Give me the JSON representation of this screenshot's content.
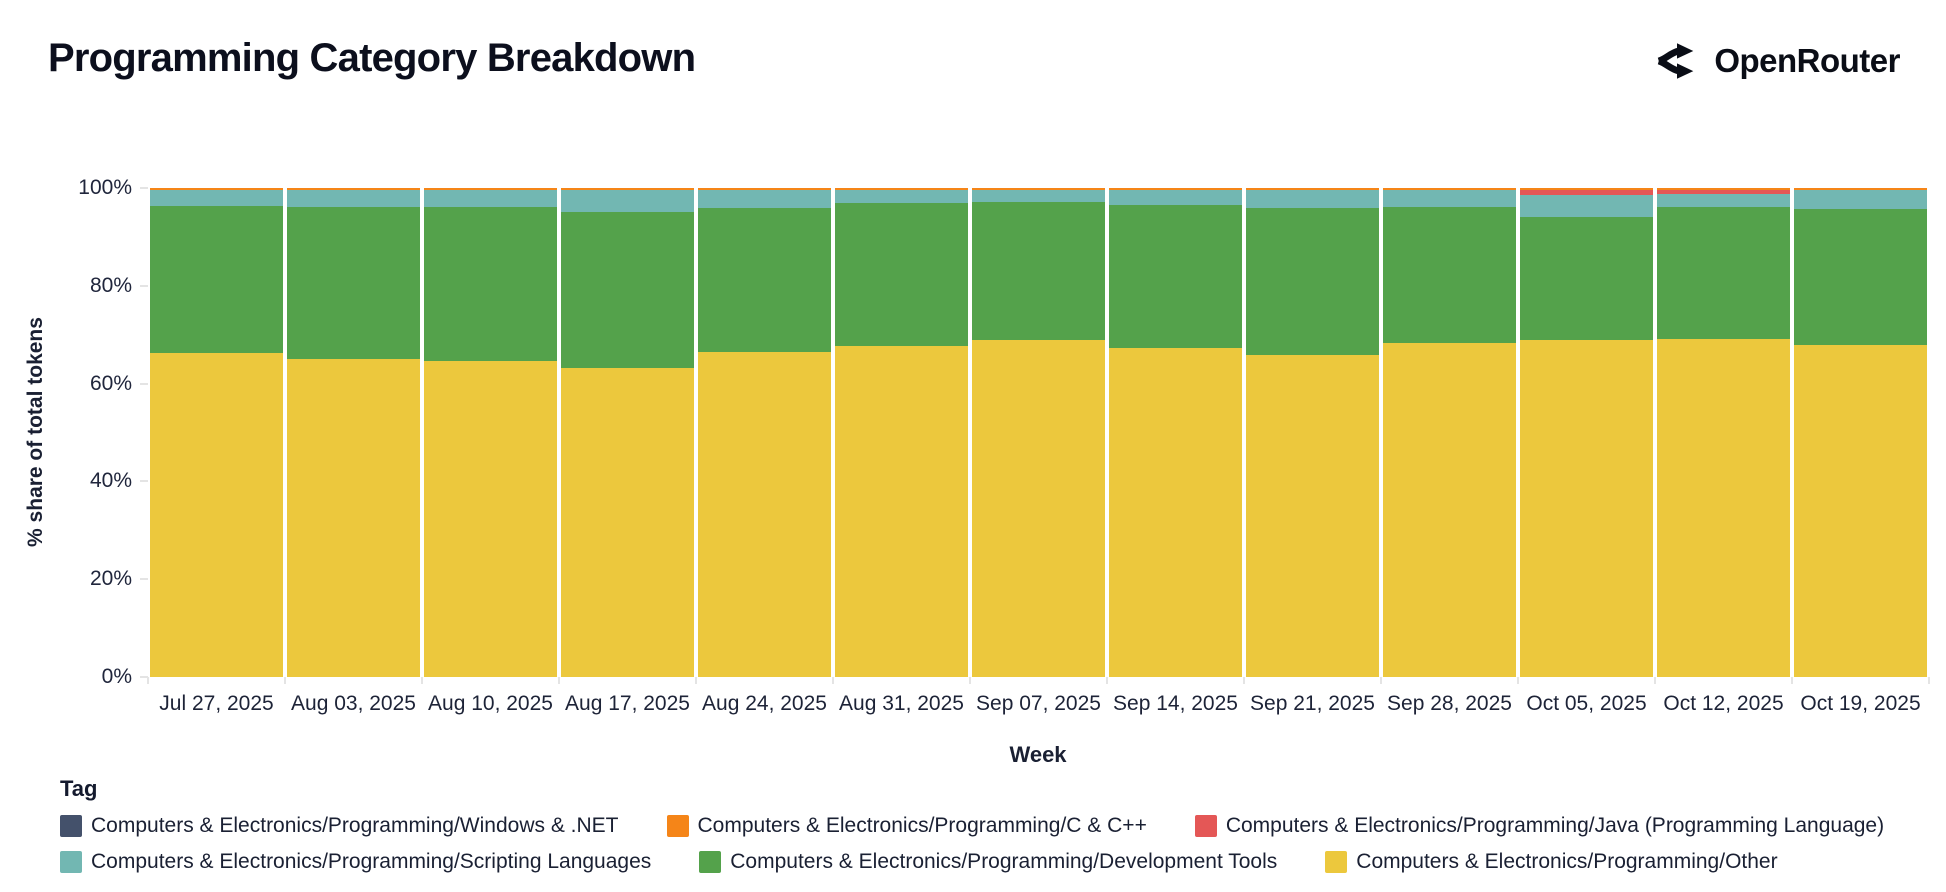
{
  "header": {
    "title": "Programming Category Breakdown",
    "brand": "OpenRouter"
  },
  "chart_data": {
    "type": "bar",
    "stacked": true,
    "unit": "%",
    "title": "Programming Category Breakdown",
    "xlabel": "Week",
    "ylabel": "% share of total tokens",
    "ylim": [
      0,
      100
    ],
    "yticks": [
      {
        "label": "0%",
        "value": 0
      },
      {
        "label": "20%",
        "value": 20
      },
      {
        "label": "40%",
        "value": 40
      },
      {
        "label": "60%",
        "value": 60
      },
      {
        "label": "80%",
        "value": 80
      },
      {
        "label": "100%",
        "value": 100
      }
    ],
    "grid": false,
    "legend_title": "Tag",
    "legend_position": "bottom",
    "categories": [
      "Jul 27, 2025",
      "Aug 03, 2025",
      "Aug 10, 2025",
      "Aug 17, 2025",
      "Aug 24, 2025",
      "Aug 31, 2025",
      "Sep 07, 2025",
      "Sep 14, 2025",
      "Sep 21, 2025",
      "Sep 28, 2025",
      "Oct 05, 2025",
      "Oct 12, 2025",
      "Oct 19, 2025"
    ],
    "series": [
      {
        "key": "windows_net",
        "name": "Computers & Electronics/Programming/Windows & .NET",
        "color": "#44516b",
        "pattern": "dotted",
        "values": [
          0.1,
          0.1,
          0.1,
          0.1,
          0.1,
          0.1,
          0.1,
          0.1,
          0.1,
          0.1,
          0.1,
          0.1,
          0.1
        ]
      },
      {
        "key": "c_cpp",
        "name": "Computers & Electronics/Programming/C & C++",
        "color": "#f58518",
        "pattern": null,
        "values": [
          0.4,
          0.4,
          0.4,
          0.4,
          0.4,
          0.4,
          0.4,
          0.4,
          0.4,
          0.4,
          0.4,
          0.4,
          0.4
        ]
      },
      {
        "key": "java",
        "name": "Computers & Electronics/Programming/Java (Programming Language)",
        "color": "#e45756",
        "pattern": null,
        "values": [
          0.0,
          0.0,
          0.0,
          0.0,
          0.0,
          0.0,
          0.0,
          0.0,
          0.0,
          0.0,
          1.0,
          0.8,
          0.0
        ]
      },
      {
        "key": "scripting",
        "name": "Computers & Electronics/Programming/Scripting Languages",
        "color": "#72b7b2",
        "pattern": null,
        "values": [
          3.1,
          3.4,
          3.4,
          4.4,
          3.6,
          2.6,
          2.4,
          3.0,
          3.6,
          3.4,
          4.4,
          2.6,
          3.8
        ]
      },
      {
        "key": "dev_tools",
        "name": "Computers & Electronics/Programming/Development Tools",
        "color": "#54a24b",
        "pattern": null,
        "values": [
          30.1,
          31.1,
          31.5,
          31.9,
          29.4,
          29.2,
          28.2,
          29.2,
          30.1,
          27.8,
          25.2,
          27.0,
          27.8
        ]
      },
      {
        "key": "other",
        "name": "Computers & Electronics/Programming/Other",
        "color": "#ecc83d",
        "pattern": null,
        "values": [
          66.3,
          65.0,
          64.6,
          63.2,
          66.5,
          67.7,
          68.9,
          67.3,
          65.8,
          68.3,
          68.9,
          69.1,
          67.9
        ]
      }
    ],
    "stack_top_to_bottom": [
      0,
      1,
      2,
      3,
      4,
      5
    ],
    "legend_rows": [
      [
        0,
        1,
        2
      ],
      [
        3,
        4,
        5
      ]
    ]
  }
}
